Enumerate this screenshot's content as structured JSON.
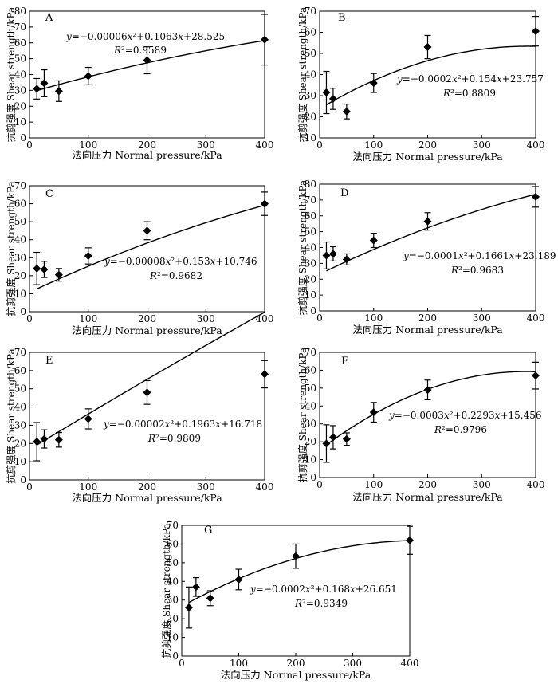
{
  "chart_data": [
    {
      "type": "scatter",
      "panel": "A",
      "xlabel": "法向压力 Normal pressure/kPa",
      "ylabel": "抗剪强度 Shear strength/kPa",
      "xlim": [
        0,
        400
      ],
      "ylim": [
        0,
        80
      ],
      "xticks": [
        0,
        100,
        200,
        300,
        400
      ],
      "yticks": [
        0,
        10,
        20,
        30,
        40,
        50,
        60,
        70,
        80
      ],
      "points": [
        {
          "x": 12.5,
          "y": 31,
          "err": 6.5
        },
        {
          "x": 25,
          "y": 34.5,
          "err": 8.5
        },
        {
          "x": 50,
          "y": 29.5,
          "err": 6.5
        },
        {
          "x": 100,
          "y": 39,
          "err": 5.5
        },
        {
          "x": 200,
          "y": 49,
          "err": 8.5
        },
        {
          "x": 400,
          "y": 62,
          "err": 16
        }
      ],
      "fit": {
        "a": -6e-05,
        "b": 0.1063,
        "c": 28.525
      },
      "equation_label": "y=−0.00006x²+0.1063x+28.525",
      "r2_label": "R²=0.9589"
    },
    {
      "type": "scatter",
      "panel": "B",
      "xlabel": "法向压力 Normal pressure/kPa",
      "ylabel": "抗剪强度 Shear strength/kPa",
      "xlim": [
        0,
        400
      ],
      "ylim": [
        10,
        70
      ],
      "xticks": [
        0,
        100,
        200,
        300,
        400
      ],
      "yticks": [
        10,
        20,
        30,
        40,
        50,
        60,
        70
      ],
      "points": [
        {
          "x": 12.5,
          "y": 31.5,
          "err": 10
        },
        {
          "x": 25,
          "y": 28.5,
          "err": 5
        },
        {
          "x": 50,
          "y": 22.5,
          "err": 3.5
        },
        {
          "x": 100,
          "y": 36,
          "err": 4.5
        },
        {
          "x": 200,
          "y": 53,
          "err": 5.5
        },
        {
          "x": 400,
          "y": 60.5,
          "err": 7
        }
      ],
      "fit": {
        "a": -0.0002,
        "b": 0.154,
        "c": 23.757
      },
      "equation_label": "y=−0.0002x²+0.154x+23.757",
      "r2_label": "R²=0.8809"
    },
    {
      "type": "scatter",
      "panel": "C",
      "xlabel": "法向压力 Normal pressure/kPa",
      "ylabel": "抗剪强度 Shear strength/kPa",
      "xlim": [
        0,
        400
      ],
      "ylim": [
        0,
        70
      ],
      "xticks": [
        0,
        100,
        200,
        300,
        400
      ],
      "yticks": [
        0,
        10,
        20,
        30,
        40,
        50,
        60,
        70
      ],
      "points": [
        {
          "x": 12.5,
          "y": 24,
          "err": 9
        },
        {
          "x": 25,
          "y": 23.5,
          "err": 4.5
        },
        {
          "x": 50,
          "y": 20.5,
          "err": 3.5
        },
        {
          "x": 100,
          "y": 31,
          "err": 4.5
        },
        {
          "x": 200,
          "y": 45,
          "err": 5
        },
        {
          "x": 400,
          "y": 60,
          "err": 6.5
        }
      ],
      "fit": {
        "a": -8e-05,
        "b": 0.153,
        "c": 10.746
      },
      "equation_label": "y=−0.00008x²+0.153x+10.746",
      "r2_label": "R²=0.9682"
    },
    {
      "type": "scatter",
      "panel": "D",
      "xlabel": "法向压力 Normal pressure/kPa",
      "ylabel": "抗剪强度 Shear strength/kPa",
      "xlim": [
        0,
        400
      ],
      "ylim": [
        0,
        80
      ],
      "xticks": [
        0,
        100,
        200,
        300,
        400
      ],
      "yticks": [
        0,
        10,
        20,
        30,
        40,
        50,
        60,
        70,
        80
      ],
      "points": [
        {
          "x": 12.5,
          "y": 35,
          "err": 8.5
        },
        {
          "x": 25,
          "y": 36,
          "err": 4.5
        },
        {
          "x": 50,
          "y": 32.5,
          "err": 3.5
        },
        {
          "x": 100,
          "y": 44.5,
          "err": 4.5
        },
        {
          "x": 200,
          "y": 56.5,
          "err": 5.5
        },
        {
          "x": 400,
          "y": 72,
          "err": 6.5
        }
      ],
      "fit": {
        "a": -0.0001,
        "b": 0.1661,
        "c": 23.189
      },
      "equation_label": "y=−0.0001x²+0.1661x+23.189",
      "r2_label": "R²=0.9683"
    },
    {
      "type": "scatter",
      "panel": "E",
      "xlabel": "法向压力 Normal pressure/kPa",
      "ylabel": "抗剪强度 Shear strength/kPa",
      "xlim": [
        0,
        400
      ],
      "ylim": [
        0,
        70
      ],
      "xticks": [
        0,
        100,
        200,
        300,
        400
      ],
      "yticks": [
        0,
        10,
        20,
        30,
        40,
        50,
        60,
        70
      ],
      "points": [
        {
          "x": 12.5,
          "y": 21,
          "err": 10.5
        },
        {
          "x": 25,
          "y": 22.5,
          "err": 5
        },
        {
          "x": 50,
          "y": 22,
          "err": 4
        },
        {
          "x": 100,
          "y": 33.5,
          "err": 5.5
        },
        {
          "x": 200,
          "y": 48,
          "err": 6.5
        },
        {
          "x": 400,
          "y": 58,
          "err": 7.5
        }
      ],
      "fit": {
        "a": -2e-05,
        "b": 0.1963,
        "c": 16.718
      },
      "equation_label": "y=−0.00002x²+0.1963x+16.718",
      "r2_label": "R²=0.9809"
    },
    {
      "type": "scatter",
      "panel": "F",
      "xlabel": "法向压力 Normal pressure/kPa",
      "ylabel": "抗剪强度 Shear strength/kPa",
      "xlim": [
        0,
        400
      ],
      "ylim": [
        0,
        70
      ],
      "xticks": [
        0,
        100,
        200,
        300,
        400
      ],
      "yticks": [
        0,
        10,
        20,
        30,
        40,
        50,
        60,
        70
      ],
      "points": [
        {
          "x": 12.5,
          "y": 19,
          "err": 10.5
        },
        {
          "x": 25,
          "y": 22.5,
          "err": 6.5
        },
        {
          "x": 50,
          "y": 21.5,
          "err": 3.5
        },
        {
          "x": 100,
          "y": 36.5,
          "err": 5.5
        },
        {
          "x": 200,
          "y": 49,
          "err": 5.5
        },
        {
          "x": 400,
          "y": 57,
          "err": 7.5
        }
      ],
      "fit": {
        "a": -0.0003,
        "b": 0.2293,
        "c": 15.456
      },
      "equation_label": "y=−0.0003x²+0.2293x+15.456",
      "r2_label": "R²=0.9796"
    },
    {
      "type": "scatter",
      "panel": "G",
      "xlabel": "法向压力 Normal pressure/kPa",
      "ylabel": "抗剪强度 Shear strength/kPa",
      "xlim": [
        0,
        400
      ],
      "ylim": [
        0,
        70
      ],
      "xticks": [
        0,
        100,
        200,
        300,
        400
      ],
      "yticks": [
        0,
        10,
        20,
        30,
        40,
        50,
        60,
        70
      ],
      "points": [
        {
          "x": 12.5,
          "y": 26,
          "err": 11
        },
        {
          "x": 25,
          "y": 37,
          "err": 5
        },
        {
          "x": 50,
          "y": 31,
          "err": 4
        },
        {
          "x": 100,
          "y": 41,
          "err": 5.5
        },
        {
          "x": 200,
          "y": 53.5,
          "err": 6.5
        },
        {
          "x": 400,
          "y": 62,
          "err": 7.5
        }
      ],
      "fit": {
        "a": -0.0002,
        "b": 0.168,
        "c": 26.651
      },
      "equation_label": "y=−0.0002x²+0.168x+26.651",
      "r2_label": "R²=0.9349"
    }
  ]
}
